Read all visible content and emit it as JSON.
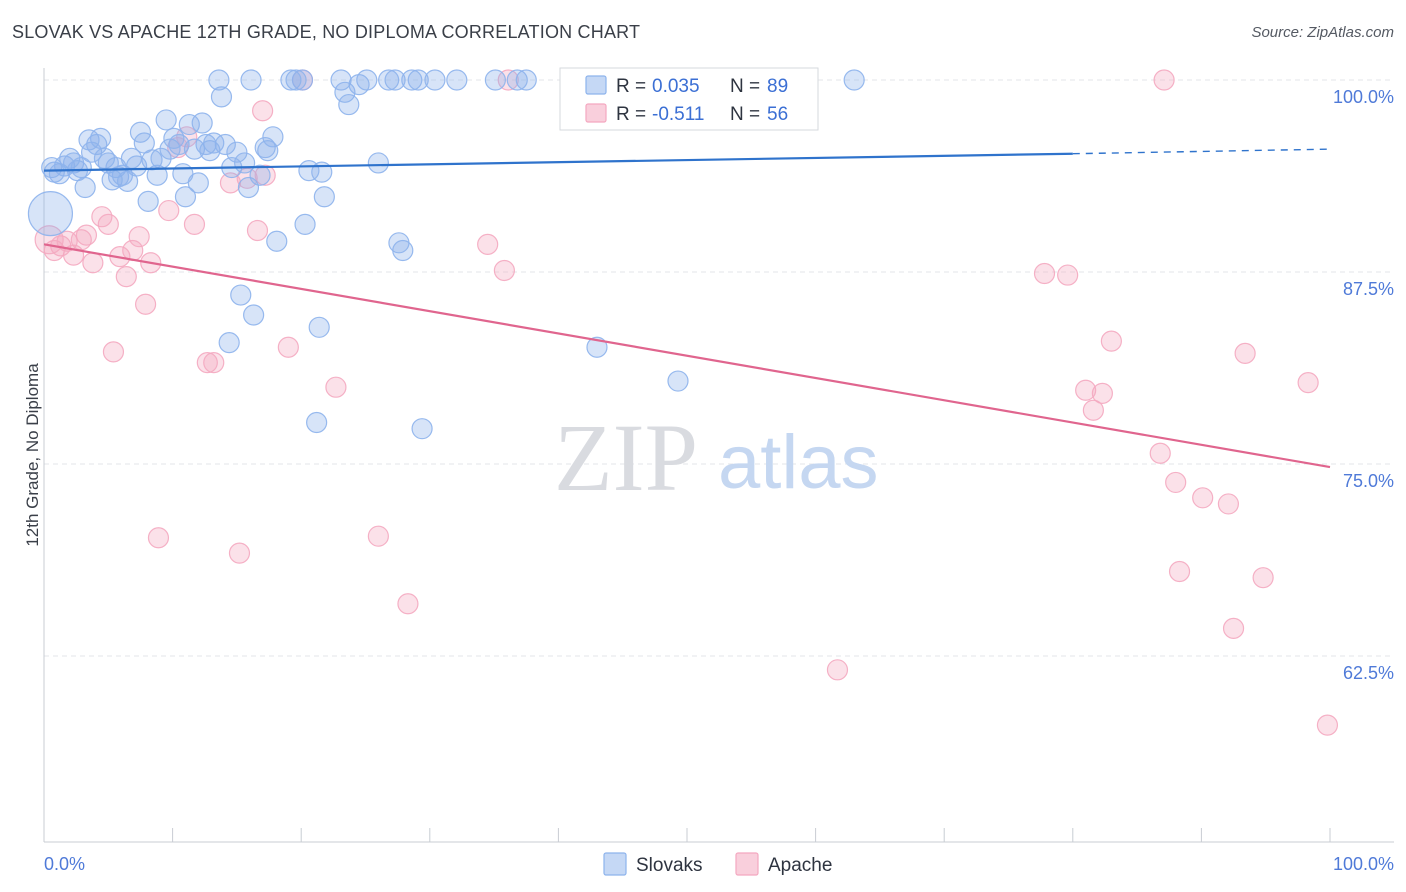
{
  "chart_data": {
    "type": "scatter",
    "title": "SLOVAK VS APACHE 12TH GRADE, NO DIPLOMA CORRELATION CHART",
    "source": "Source: ZipAtlas.com",
    "ylabel": "12th Grade, No Diploma",
    "xlabel": "",
    "xlim": [
      0,
      100
    ],
    "ylim": [
      50,
      100.9
    ],
    "x_tick_labels": {
      "min": "0.0%",
      "max": "100.0%"
    },
    "y_ticks": [
      {
        "value": 100.0,
        "label": "100.0%"
      },
      {
        "value": 87.5,
        "label": "87.5%"
      },
      {
        "value": 75.0,
        "label": "75.0%"
      },
      {
        "value": 62.5,
        "label": "62.5%"
      }
    ],
    "grid": "horizontal dashed",
    "watermark": {
      "zip": "ZIP",
      "atlas": "atlas"
    },
    "legend_position": "top-center",
    "series": [
      {
        "name": "Slovaks",
        "color": "#8db3ec",
        "line_color": "#2f73cc",
        "stats": {
          "r_label": "R =",
          "r_value": "0.035",
          "n_label": "N =",
          "n_value": "89"
        },
        "trend": {
          "x0": 0,
          "y0": 94.1,
          "x1": 80,
          "y1": 95.2,
          "dash_to": 100,
          "dash_y": 95.5
        },
        "points": [
          [
            0.5,
            91.3,
            22
          ],
          [
            0.6,
            94.3,
            10
          ],
          [
            0.8,
            94.0,
            10
          ],
          [
            1.2,
            93.9,
            10
          ],
          [
            1.6,
            94.4,
            10
          ],
          [
            2.0,
            94.9,
            10
          ],
          [
            2.3,
            94.6,
            10
          ],
          [
            2.6,
            94.1,
            10
          ],
          [
            2.9,
            94.3,
            10
          ],
          [
            3.2,
            93.0,
            10
          ],
          [
            3.5,
            96.1,
            10
          ],
          [
            3.7,
            95.3,
            10
          ],
          [
            4.1,
            95.8,
            10
          ],
          [
            4.4,
            96.2,
            10
          ],
          [
            4.7,
            94.9,
            10
          ],
          [
            5.0,
            94.6,
            10
          ],
          [
            5.3,
            93.5,
            10
          ],
          [
            5.6,
            94.3,
            10
          ],
          [
            5.8,
            93.7,
            10
          ],
          [
            6.1,
            93.8,
            10
          ],
          [
            6.5,
            93.4,
            10
          ],
          [
            6.8,
            94.9,
            10
          ],
          [
            7.2,
            94.4,
            10
          ],
          [
            7.5,
            96.6,
            10
          ],
          [
            7.8,
            95.9,
            10
          ],
          [
            8.1,
            92.1,
            10
          ],
          [
            8.4,
            94.8,
            10
          ],
          [
            8.8,
            93.8,
            10
          ],
          [
            9.1,
            94.9,
            10
          ],
          [
            9.5,
            97.4,
            10
          ],
          [
            9.8,
            95.5,
            10
          ],
          [
            10.1,
            96.2,
            10
          ],
          [
            10.5,
            95.8,
            10
          ],
          [
            10.8,
            93.9,
            10
          ],
          [
            11.0,
            92.4,
            10
          ],
          [
            11.3,
            97.1,
            10
          ],
          [
            11.7,
            95.5,
            10
          ],
          [
            12.0,
            93.3,
            10
          ],
          [
            12.3,
            97.2,
            10
          ],
          [
            12.6,
            95.8,
            10
          ],
          [
            12.9,
            95.4,
            10
          ],
          [
            13.2,
            95.9,
            10
          ],
          [
            13.6,
            100.0,
            10
          ],
          [
            13.8,
            98.9,
            10
          ],
          [
            14.1,
            95.8,
            10
          ],
          [
            14.4,
            82.9,
            10
          ],
          [
            14.6,
            94.3,
            10
          ],
          [
            15.0,
            95.3,
            10
          ],
          [
            15.3,
            86.0,
            10
          ],
          [
            15.6,
            94.6,
            10
          ],
          [
            15.9,
            93.0,
            10
          ],
          [
            16.1,
            100.0,
            10
          ],
          [
            16.3,
            84.7,
            10
          ],
          [
            16.8,
            93.8,
            10
          ],
          [
            17.2,
            95.6,
            10
          ],
          [
            17.4,
            95.4,
            10
          ],
          [
            17.8,
            96.3,
            10
          ],
          [
            18.1,
            89.5,
            10
          ],
          [
            19.2,
            100.0,
            10
          ],
          [
            19.6,
            100.0,
            10
          ],
          [
            20.1,
            100.0,
            10
          ],
          [
            20.3,
            90.6,
            10
          ],
          [
            20.6,
            94.1,
            10
          ],
          [
            21.4,
            83.9,
            10
          ],
          [
            21.6,
            94.0,
            10
          ],
          [
            21.8,
            92.4,
            10
          ],
          [
            23.1,
            100.0,
            10
          ],
          [
            23.4,
            99.2,
            10
          ],
          [
            23.7,
            98.4,
            10
          ],
          [
            24.5,
            99.7,
            10
          ],
          [
            25.1,
            100.0,
            10
          ],
          [
            26.0,
            94.6,
            10
          ],
          [
            26.8,
            100.0,
            10
          ],
          [
            27.3,
            100.0,
            10
          ],
          [
            27.6,
            89.4,
            10
          ],
          [
            27.9,
            88.9,
            10
          ],
          [
            28.6,
            100.0,
            10
          ],
          [
            29.1,
            100.0,
            10
          ],
          [
            30.4,
            100.0,
            10
          ],
          [
            32.1,
            100.0,
            10
          ],
          [
            35.1,
            100.0,
            10
          ],
          [
            36.8,
            100.0,
            10
          ],
          [
            37.5,
            100.0,
            10
          ],
          [
            43.0,
            82.6,
            10
          ],
          [
            49.3,
            80.4,
            10
          ],
          [
            52.0,
            100.0,
            10
          ],
          [
            63.0,
            100.0,
            10
          ],
          [
            21.2,
            77.7,
            10
          ],
          [
            29.4,
            77.3,
            10
          ]
        ]
      },
      {
        "name": "Apache",
        "color": "#f4a8c0",
        "line_color": "#e0658e",
        "stats": {
          "r_label": "R =",
          "r_value": "-0.511",
          "n_label": "N =",
          "n_value": "56"
        },
        "trend": {
          "x0": 0,
          "y0": 89.3,
          "x1": 100,
          "y1": 74.8
        },
        "points": [
          [
            0.4,
            89.6,
            14
          ],
          [
            0.8,
            88.9,
            10
          ],
          [
            1.3,
            89.2,
            10
          ],
          [
            1.8,
            89.5,
            10
          ],
          [
            2.3,
            88.6,
            10
          ],
          [
            2.9,
            89.6,
            10
          ],
          [
            3.3,
            89.9,
            10
          ],
          [
            3.8,
            88.1,
            10
          ],
          [
            4.5,
            91.1,
            10
          ],
          [
            5.0,
            90.6,
            10
          ],
          [
            5.4,
            82.3,
            10
          ],
          [
            5.9,
            88.5,
            10
          ],
          [
            6.4,
            87.2,
            10
          ],
          [
            6.9,
            88.9,
            10
          ],
          [
            7.4,
            89.8,
            10
          ],
          [
            7.9,
            85.4,
            10
          ],
          [
            8.3,
            88.1,
            10
          ],
          [
            8.9,
            70.2,
            10
          ],
          [
            9.7,
            91.5,
            10
          ],
          [
            10.4,
            95.6,
            10
          ],
          [
            11.1,
            96.3,
            10
          ],
          [
            11.7,
            90.6,
            10
          ],
          [
            12.7,
            81.6,
            10
          ],
          [
            13.2,
            81.6,
            10
          ],
          [
            14.5,
            93.3,
            10
          ],
          [
            15.2,
            69.2,
            10
          ],
          [
            15.8,
            93.6,
            10
          ],
          [
            16.6,
            90.2,
            10
          ],
          [
            17.0,
            98.0,
            10
          ],
          [
            19.0,
            82.6,
            10
          ],
          [
            20.1,
            100.0,
            10
          ],
          [
            22.7,
            80.0,
            10
          ],
          [
            26.0,
            70.3,
            10
          ],
          [
            28.3,
            65.9,
            10
          ],
          [
            34.5,
            89.3,
            10
          ],
          [
            35.8,
            87.6,
            10
          ],
          [
            36.1,
            100.0,
            10
          ],
          [
            61.7,
            61.6,
            10
          ],
          [
            77.8,
            87.4,
            10
          ],
          [
            79.6,
            87.3,
            10
          ],
          [
            81.0,
            79.8,
            10
          ],
          [
            81.6,
            78.5,
            10
          ],
          [
            82.3,
            79.6,
            10
          ],
          [
            83.0,
            83.0,
            10
          ],
          [
            86.8,
            75.7,
            10
          ],
          [
            87.1,
            100.0,
            10
          ],
          [
            88.0,
            73.8,
            10
          ],
          [
            88.3,
            68.0,
            10
          ],
          [
            90.1,
            72.8,
            10
          ],
          [
            92.1,
            72.4,
            10
          ],
          [
            92.5,
            64.3,
            10
          ],
          [
            93.4,
            82.2,
            10
          ],
          [
            94.8,
            67.6,
            10
          ],
          [
            98.3,
            80.3,
            10
          ],
          [
            99.8,
            58.0,
            10
          ],
          [
            17.2,
            93.8,
            10
          ]
        ]
      }
    ]
  }
}
